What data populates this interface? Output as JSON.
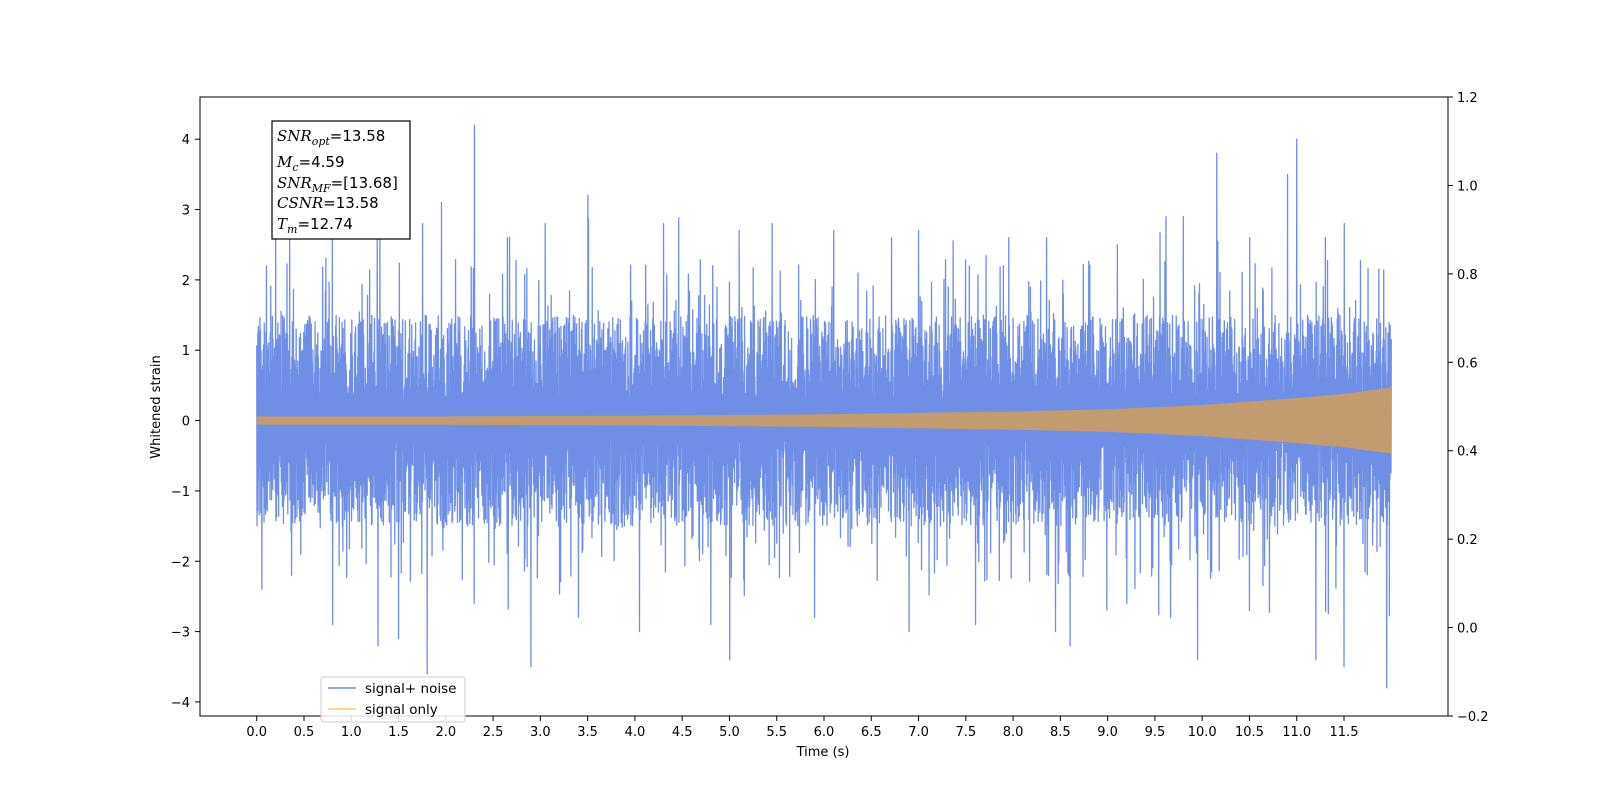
{
  "chart_data": {
    "type": "line",
    "xlabel": "Time (s)",
    "ylabel": "Whitened strain",
    "xlim": [
      -0.6,
      12.6
    ],
    "ylim": [
      -4.2,
      4.6
    ],
    "y2lim": [
      -0.2,
      1.2
    ],
    "x_ticks": [
      "0.0",
      "0.5",
      "1.0",
      "1.5",
      "2.0",
      "2.5",
      "3.0",
      "3.5",
      "4.0",
      "4.5",
      "5.0",
      "5.5",
      "6.0",
      "6.5",
      "7.0",
      "7.5",
      "8.0",
      "8.5",
      "9.0",
      "9.5",
      "10.0",
      "10.5",
      "11.0",
      "11.5"
    ],
    "y_ticks": [
      "4",
      "3",
      "2",
      "1",
      "0",
      "−1",
      "−2",
      "−3",
      "−4"
    ],
    "y2_ticks": [
      "1.2",
      "1.0",
      "0.8",
      "0.6",
      "0.4",
      "0.2",
      "0.0",
      "−0.2"
    ],
    "series": [
      {
        "name": "signal+ noise",
        "color": "#6f8ee6",
        "x_range": [
          0.0,
          12.0
        ],
        "core_amplitude": 1.25,
        "peaks": [
          [
            0.1,
            2.2
          ],
          [
            0.2,
            2.7
          ],
          [
            0.35,
            2.6
          ],
          [
            0.8,
            2.6
          ],
          [
            1.3,
            2.7
          ],
          [
            1.75,
            2.8
          ],
          [
            1.95,
            3.1
          ],
          [
            2.3,
            4.2
          ],
          [
            2.65,
            2.6
          ],
          [
            3.05,
            2.8
          ],
          [
            3.5,
            3.2
          ],
          [
            4.3,
            2.8
          ],
          [
            5.1,
            2.7
          ],
          [
            5.45,
            2.8
          ],
          [
            6.1,
            2.7
          ],
          [
            7.0,
            2.7
          ],
          [
            7.95,
            2.6
          ],
          [
            8.35,
            2.6
          ],
          [
            9.1,
            2.5
          ],
          [
            9.8,
            2.9
          ],
          [
            10.15,
            3.8
          ],
          [
            10.5,
            2.6
          ],
          [
            10.9,
            3.5
          ],
          [
            11.0,
            4.0
          ],
          [
            11.3,
            2.6
          ],
          [
            11.5,
            2.8
          ]
        ],
        "troughs": [
          [
            0.05,
            -2.4
          ],
          [
            0.8,
            -2.9
          ],
          [
            1.28,
            -3.2
          ],
          [
            1.5,
            -3.1
          ],
          [
            1.8,
            -3.6
          ],
          [
            2.3,
            -2.6
          ],
          [
            2.9,
            -3.5
          ],
          [
            3.4,
            -2.8
          ],
          [
            4.05,
            -3.0
          ],
          [
            4.8,
            -2.9
          ],
          [
            5.0,
            -3.4
          ],
          [
            5.9,
            -2.8
          ],
          [
            6.9,
            -3.0
          ],
          [
            7.6,
            -2.9
          ],
          [
            8.45,
            -3.0
          ],
          [
            8.6,
            -3.2
          ],
          [
            9.2,
            -2.6
          ],
          [
            9.95,
            -3.4
          ],
          [
            10.5,
            -2.7
          ],
          [
            11.2,
            -3.4
          ],
          [
            11.5,
            -3.5
          ],
          [
            11.95,
            -3.8
          ]
        ]
      },
      {
        "name": "signal only",
        "color": "#c29b6e",
        "legend_color": "#ffc966",
        "x_range": [
          0.0,
          12.0
        ],
        "envelope": [
          [
            0.0,
            0.06
          ],
          [
            2.0,
            0.06
          ],
          [
            4.0,
            0.07
          ],
          [
            6.0,
            0.09
          ],
          [
            8.0,
            0.13
          ],
          [
            9.0,
            0.16
          ],
          [
            10.0,
            0.22
          ],
          [
            11.0,
            0.32
          ],
          [
            11.5,
            0.38
          ],
          [
            12.0,
            0.47
          ]
        ]
      }
    ],
    "legend": {
      "position": "lower-left"
    },
    "annotation_box": {
      "position": "upper-left",
      "lines": [
        {
          "base": "SNR",
          "sub": "opt",
          "value": "=13.58"
        },
        {
          "base": "M",
          "sub": "c",
          "value": "=4.59"
        },
        {
          "base": "SNR",
          "sub": "MF",
          "value": "=[13.68]"
        },
        {
          "base": "CSNR",
          "sub": "",
          "value": "=13.58"
        },
        {
          "base": "T",
          "sub": "m",
          "value": "=12.74"
        }
      ]
    }
  }
}
